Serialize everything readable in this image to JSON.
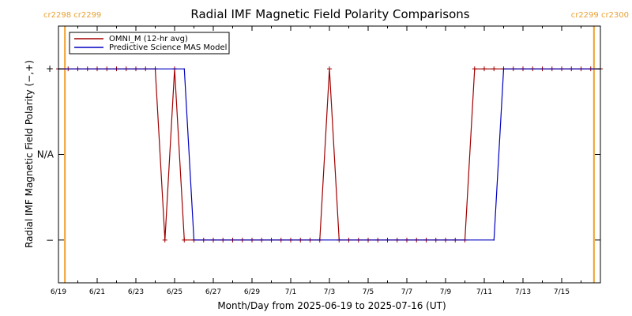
{
  "chart_data": {
    "type": "line",
    "title": "Radial IMF Magnetic Field Polarity Comparisons",
    "xlabel": "Month/Day from 2025-06-19 to 2025-07-16 (UT)",
    "ylabel": "Radial IMF Magnetic Field Polarity (−,+)",
    "xlim": [
      "2025-06-19",
      "2025-07-17"
    ],
    "ylim": [
      -1.5,
      1.5
    ],
    "y_tick_values": [
      1,
      0,
      -1
    ],
    "y_tick_labels": [
      "+",
      "N/A",
      "−"
    ],
    "x_tick_labels": [
      "6/19",
      "6/21",
      "6/23",
      "6/25",
      "6/27",
      "6/29",
      "7/1",
      "7/3",
      "7/5",
      "7/7",
      "7/9",
      "7/11",
      "7/13",
      "7/15"
    ],
    "x_tick_dates": [
      "2025-06-19",
      "2025-06-21",
      "2025-06-23",
      "2025-06-25",
      "2025-06-27",
      "2025-06-29",
      "2025-07-01",
      "2025-07-03",
      "2025-07-05",
      "2025-07-07",
      "2025-07-09",
      "2025-07-11",
      "2025-07-13",
      "2025-07-15"
    ],
    "carrington": [
      {
        "label": "cr2298 cr2299",
        "date": "2025-06-19T08:00"
      },
      {
        "label": "cr2299 cr2300",
        "date": "2025-07-16T16:00"
      }
    ],
    "legend_position": "top-left",
    "series": [
      {
        "name": "OMNI_M (12-hr avg)",
        "color": "#a00000",
        "x": [
          "2025-06-19T00:00",
          "2025-06-19T12:00",
          "2025-06-20T00:00",
          "2025-06-20T12:00",
          "2025-06-21T00:00",
          "2025-06-21T12:00",
          "2025-06-22T00:00",
          "2025-06-22T12:00",
          "2025-06-23T00:00",
          "2025-06-23T12:00",
          "2025-06-24T00:00",
          "2025-06-24T12:00",
          "2025-06-25T00:00",
          "2025-06-25T12:00",
          "2025-06-26T00:00",
          "2025-06-26T12:00",
          "2025-06-27T00:00",
          "2025-06-27T12:00",
          "2025-06-28T00:00",
          "2025-06-28T12:00",
          "2025-06-29T00:00",
          "2025-06-29T12:00",
          "2025-06-30T00:00",
          "2025-06-30T12:00",
          "2025-07-01T00:00",
          "2025-07-01T12:00",
          "2025-07-02T00:00",
          "2025-07-02T12:00",
          "2025-07-03T00:00",
          "2025-07-03T12:00",
          "2025-07-04T00:00",
          "2025-07-04T12:00",
          "2025-07-05T00:00",
          "2025-07-05T12:00",
          "2025-07-06T00:00",
          "2025-07-06T12:00",
          "2025-07-07T00:00",
          "2025-07-07T12:00",
          "2025-07-08T00:00",
          "2025-07-08T12:00",
          "2025-07-09T00:00",
          "2025-07-09T12:00",
          "2025-07-10T00:00",
          "2025-07-10T12:00",
          "2025-07-11T00:00",
          "2025-07-11T12:00",
          "2025-07-12T00:00",
          "2025-07-12T12:00",
          "2025-07-13T00:00",
          "2025-07-13T12:00",
          "2025-07-14T00:00",
          "2025-07-14T12:00",
          "2025-07-15T00:00",
          "2025-07-15T12:00",
          "2025-07-16T00:00",
          "2025-07-16T12:00",
          "2025-07-17T00:00"
        ],
        "y": [
          1,
          1,
          1,
          1,
          1,
          1,
          1,
          1,
          1,
          1,
          1,
          -1,
          1,
          -1,
          -1,
          -1,
          -1,
          -1,
          -1,
          -1,
          -1,
          -1,
          -1,
          -1,
          -1,
          -1,
          -1,
          -1,
          1,
          -1,
          -1,
          -1,
          -1,
          -1,
          -1,
          -1,
          -1,
          -1,
          -1,
          -1,
          -1,
          -1,
          -1,
          1,
          1,
          1,
          1,
          1,
          1,
          1,
          1,
          1,
          1,
          1,
          1,
          1,
          1
        ]
      },
      {
        "name": "Predictive Science MAS Model",
        "color": "#0000c0",
        "x": [
          "2025-06-19T00:00",
          "2025-06-25T00:00",
          "2025-06-25T12:00",
          "2025-06-26T00:00",
          "2025-07-11T12:00",
          "2025-07-12T00:00",
          "2025-07-17T00:00"
        ],
        "y": [
          1,
          1,
          1,
          -1,
          -1,
          1,
          1
        ]
      }
    ]
  }
}
